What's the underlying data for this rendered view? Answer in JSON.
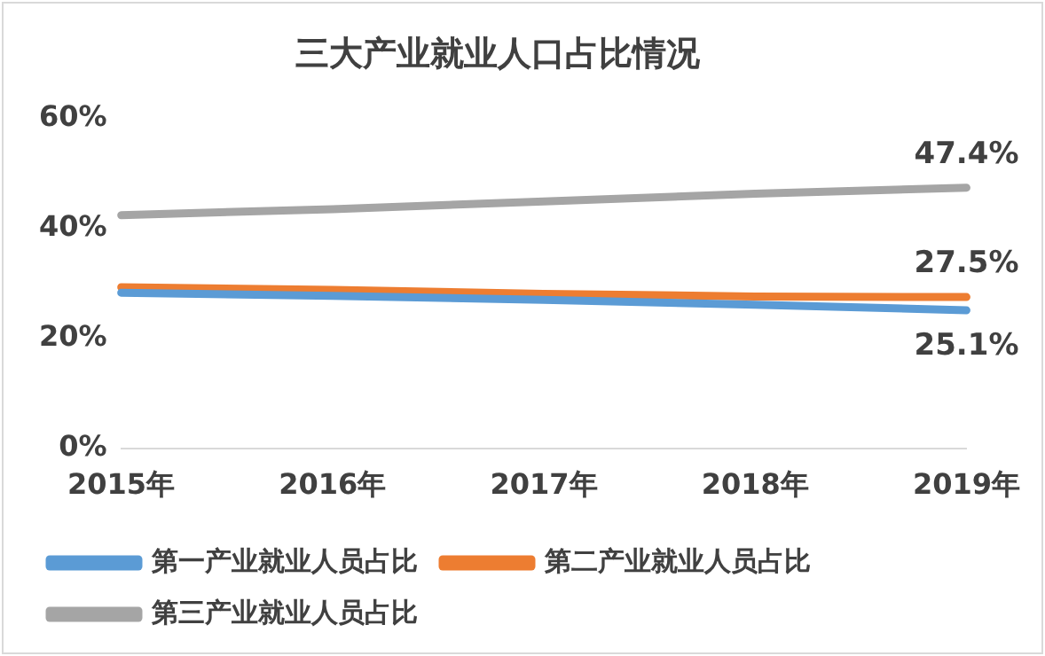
{
  "chart_data": {
    "type": "line",
    "title": "三大产业就业人口占比情况",
    "categories": [
      "2015年",
      "2016年",
      "2017年",
      "2018年",
      "2019年"
    ],
    "series": [
      {
        "name": "第一产业就业人员占比",
        "color": "#5b9bd5",
        "values": [
          28.3,
          27.7,
          27.0,
          26.1,
          25.1
        ],
        "value_labels": [
          null,
          null,
          null,
          null,
          "25.1%"
        ]
      },
      {
        "name": "第二产业就业人员占比",
        "color": "#ed7d31",
        "values": [
          29.3,
          28.8,
          28.1,
          27.6,
          27.5
        ],
        "value_labels": [
          null,
          null,
          null,
          null,
          "27.5%"
        ]
      },
      {
        "name": "第三产业就业人员占比",
        "color": "#a5a5a5",
        "values": [
          42.4,
          43.5,
          44.9,
          46.3,
          47.4
        ],
        "value_labels": [
          null,
          null,
          null,
          null,
          "47.4%"
        ]
      }
    ],
    "ylim": [
      0,
      60
    ],
    "yticks": [
      {
        "value": 0,
        "label": "0%"
      },
      {
        "value": 20,
        "label": "20%"
      },
      {
        "value": 40,
        "label": "40%"
      },
      {
        "value": 60,
        "label": "60%"
      }
    ],
    "grid": false,
    "legend": "bottom",
    "marker": "none",
    "line_style": "solid"
  }
}
